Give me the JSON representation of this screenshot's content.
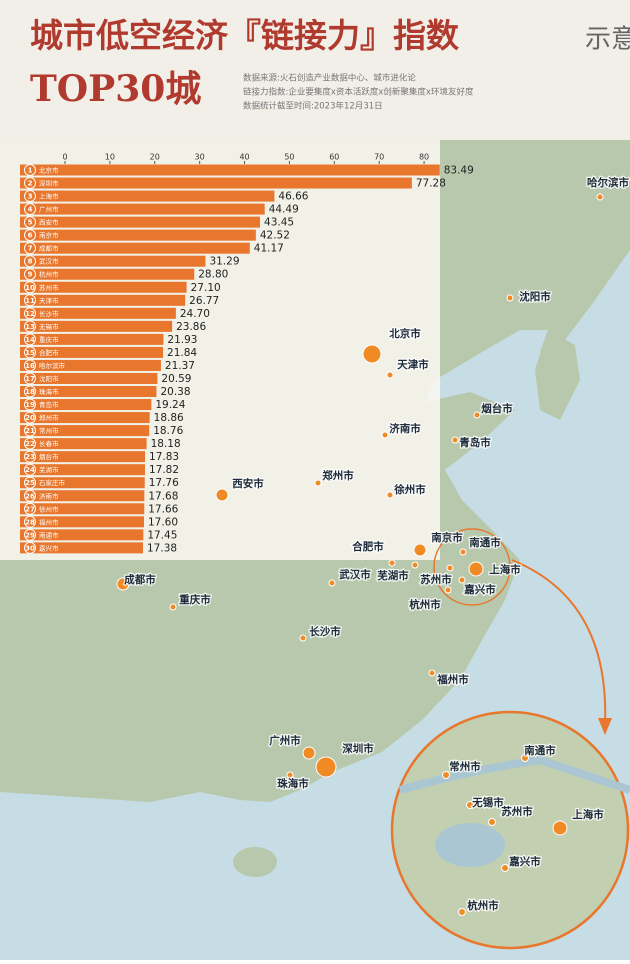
{
  "header": {
    "title": "城市低空经济『链接力』指数",
    "title_suffix": "示意",
    "title2": "TOP30城",
    "notes": [
      "数据来源:火石创造产业数据中心、城市进化论",
      "链接力指数:企业要集度x资本活跃度x创新聚集度x环境友好度",
      "数据统计截至时间:2023年12月31日"
    ]
  },
  "chart_data": {
    "type": "hbar",
    "ranks": [
      1,
      2,
      3,
      4,
      5,
      6,
      7,
      8,
      9,
      10,
      11,
      12,
      13,
      14,
      15,
      16,
      17,
      18,
      19,
      20,
      21,
      22,
      23,
      24,
      25,
      26,
      27,
      28,
      29,
      30
    ],
    "categories": [
      "北京市",
      "深圳市",
      "上海市",
      "广州市",
      "西安市",
      "南京市",
      "成都市",
      "武汉市",
      "杭州市",
      "苏州市",
      "天津市",
      "长沙市",
      "无锡市",
      "重庆市",
      "合肥市",
      "哈尔滨市",
      "沈阳市",
      "珠海市",
      "青岛市",
      "郑州市",
      "常州市",
      "长春市",
      "烟台市",
      "芜湖市",
      "石家庄市",
      "济南市",
      "徐州市",
      "福州市",
      "南通市",
      "嘉兴市"
    ],
    "values": [
      83.49,
      77.28,
      46.66,
      44.49,
      43.45,
      42.52,
      41.17,
      31.29,
      28.8,
      27.1,
      26.77,
      24.7,
      23.86,
      21.93,
      21.84,
      21.37,
      20.59,
      20.38,
      19.24,
      18.86,
      18.76,
      18.18,
      17.83,
      17.82,
      17.76,
      17.68,
      17.66,
      17.6,
      17.45,
      17.38
    ],
    "value_labels": [
      "83.49",
      "77.28",
      "46.66",
      "44.49",
      "43.45",
      "42.52",
      "41.17",
      "31.29",
      "28.80",
      "27.10",
      "26.77",
      "24.70",
      "23.86",
      "21.93",
      "21.84",
      "21.37",
      "20.59",
      "20.38",
      "19.24",
      "18.86",
      "18.76",
      "18.18",
      "17.83",
      "17.82",
      "17.76",
      "17.68",
      "17.66",
      "17.60",
      "17.45",
      "17.38"
    ],
    "color": "#e8762c",
    "xlim": [
      0,
      86
    ],
    "xticks": [
      0,
      10,
      20,
      30,
      40,
      50,
      60,
      70,
      80
    ]
  },
  "map": {
    "cities": [
      "哈尔滨市",
      "沈阳市",
      "北京市",
      "天津市",
      "烟台市",
      "济南市",
      "青岛市",
      "郑州市",
      "西安市",
      "徐州市",
      "南京市",
      "合肥市",
      "南通市",
      "上海市",
      "武汉市",
      "芜湖市",
      "苏州市",
      "嘉兴市",
      "杭州市",
      "成都市",
      "重庆市",
      "长沙市",
      "福州市",
      "广州市",
      "深圳市",
      "珠海市"
    ],
    "inset_cities": [
      "南通市",
      "常州市",
      "无锡市",
      "苏州市",
      "上海市",
      "嘉兴市",
      "杭州市"
    ]
  }
}
